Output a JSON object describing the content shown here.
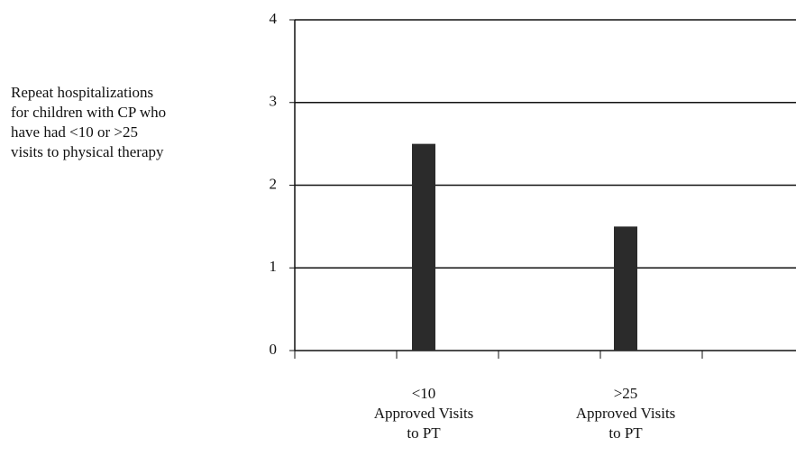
{
  "chart_data": {
    "type": "bar",
    "title": "Repeat hospitalizations\nfor children with CP who\nhave had <10 or >25\nvisits to physical therapy",
    "categories": [
      "<10\nApproved Visits\nto PT",
      ">25\nApproved Visits\nto PT"
    ],
    "values": [
      2.5,
      1.5
    ],
    "color": "#2b2b2b",
    "ylim": [
      0,
      4
    ],
    "yticks": [
      0,
      1,
      2,
      3,
      4
    ],
    "grid": true
  }
}
